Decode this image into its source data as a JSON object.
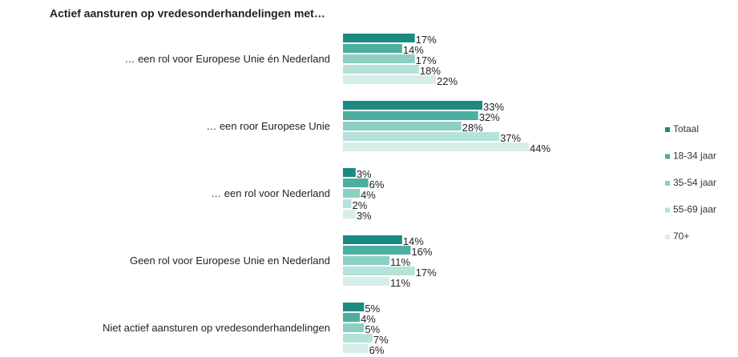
{
  "chart_data": {
    "type": "bar",
    "orientation": "horizontal",
    "title": "Actief aansturen op vredesonderhandelingen met…",
    "categories": [
      "… een rol voor Europese Unie én Nederland",
      "… een roor Europese Unie",
      "… een rol voor Nederland",
      "Geen rol voor Europese Unie en Nederland",
      "Niet actief aansturen op vredesonderhandelingen"
    ],
    "series": [
      {
        "name": "Totaal",
        "color": "#1b8a83",
        "values": [
          17,
          33,
          3,
          14,
          5
        ],
        "value_labels": [
          "17%",
          "33%",
          "3%",
          "14%",
          "5%"
        ]
      },
      {
        "name": "18-34 jaar",
        "color": "#4cae9f",
        "values": [
          14,
          32,
          6,
          16,
          4
        ],
        "value_labels": [
          "14%",
          "32%",
          "6%",
          "16%",
          "4%"
        ]
      },
      {
        "name": "35-54 jaar",
        "color": "#8ccfc3",
        "values": [
          17,
          28,
          4,
          11,
          5
        ],
        "value_labels": [
          "17%",
          "28%",
          "4%",
          "11%",
          "5%"
        ]
      },
      {
        "name": "55-69 jaar",
        "color": "#b5e2d9",
        "values": [
          18,
          37,
          2,
          17,
          7
        ],
        "value_labels": [
          "18%",
          "37%",
          "2%",
          "17%",
          "7%"
        ]
      },
      {
        "name": "70+",
        "color": "#d5eee9",
        "values": [
          22,
          44,
          3,
          11,
          6
        ],
        "value_labels": [
          "22%",
          "44%",
          "3%",
          "11%",
          "6%"
        ]
      }
    ],
    "legend": "right"
  }
}
